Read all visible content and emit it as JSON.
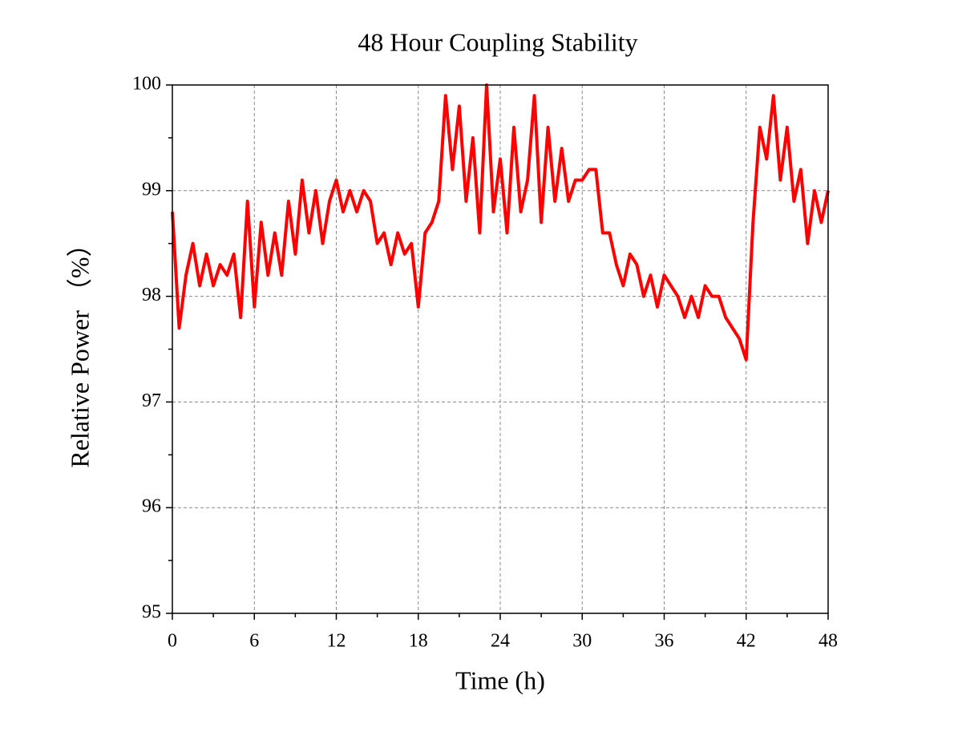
{
  "chart_data": {
    "type": "line",
    "title": "48 Hour Coupling Stability",
    "x_label": "Time (h)",
    "y_label": "Relative Power （%）",
    "x": [
      0,
      0.5,
      1,
      1.5,
      2,
      2.5,
      3,
      3.5,
      4,
      4.5,
      5,
      5.5,
      6,
      6.5,
      7,
      7.5,
      8,
      8.5,
      9,
      9.5,
      10,
      10.5,
      11,
      11.5,
      12,
      12.5,
      13,
      13.5,
      14,
      14.5,
      15,
      15.5,
      16,
      16.5,
      17,
      17.5,
      18,
      18.5,
      19,
      19.5,
      20,
      20.5,
      21,
      21.5,
      22,
      22.5,
      23,
      23.5,
      24,
      24.5,
      25,
      25.5,
      26,
      26.5,
      27,
      27.5,
      28,
      28.5,
      29,
      29.5,
      30,
      30.5,
      31,
      31.5,
      32,
      32.5,
      33,
      33.5,
      34,
      34.5,
      35,
      35.5,
      36,
      36.5,
      37,
      37.5,
      38,
      38.5,
      39,
      39.5,
      40,
      40.5,
      41,
      41.5,
      42,
      42.5,
      43,
      43.5,
      44,
      44.5,
      45,
      45.5,
      46,
      46.5,
      47,
      47.5,
      48
    ],
    "series": [
      {
        "name": "Relative Power",
        "color": "#ff0000",
        "values": [
          98.8,
          97.7,
          98.2,
          98.5,
          98.1,
          98.4,
          98.1,
          98.3,
          98.2,
          98.4,
          97.8,
          98.9,
          97.9,
          98.7,
          98.2,
          98.6,
          98.2,
          98.9,
          98.4,
          99.1,
          98.6,
          99.0,
          98.5,
          98.9,
          99.1,
          98.8,
          99.0,
          98.8,
          99.0,
          98.9,
          98.5,
          98.6,
          98.3,
          98.6,
          98.4,
          98.5,
          97.9,
          98.6,
          98.7,
          98.9,
          99.9,
          99.2,
          99.8,
          98.9,
          99.5,
          98.6,
          100.0,
          98.8,
          99.3,
          98.6,
          99.6,
          98.8,
          99.1,
          99.9,
          98.7,
          99.6,
          98.9,
          99.4,
          98.9,
          99.1,
          99.1,
          99.2,
          99.2,
          98.6,
          98.6,
          98.3,
          98.1,
          98.4,
          98.3,
          98.0,
          98.2,
          97.9,
          98.2,
          98.1,
          98.0,
          97.8,
          98.0,
          97.8,
          98.1,
          98.0,
          98.0,
          97.8,
          97.7,
          97.6,
          97.4,
          98.7,
          99.6,
          99.3,
          99.9,
          99.1,
          99.6,
          98.9,
          99.2,
          98.5,
          99.0,
          98.7,
          99.0
        ]
      }
    ],
    "xlim": [
      0,
      48
    ],
    "xticks": [
      0,
      6,
      12,
      18,
      24,
      30,
      36,
      42,
      48
    ],
    "ylim": [
      95,
      100
    ],
    "yticks": [
      95,
      96,
      97,
      98,
      99,
      100
    ],
    "grid": true
  }
}
